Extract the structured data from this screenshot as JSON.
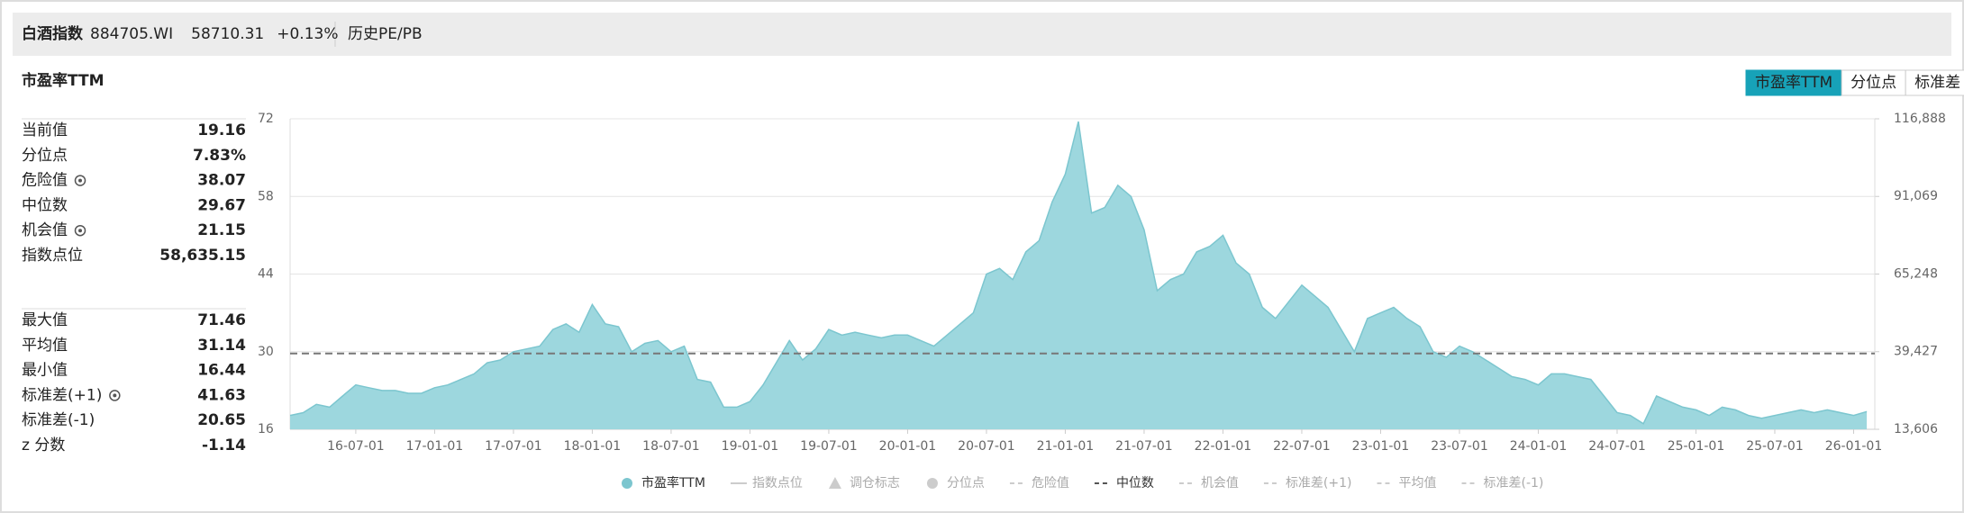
{
  "header": {
    "name": "白酒指数",
    "code": "884705.WI",
    "price": "58710.31",
    "change": "+0.13%",
    "link": "历史PE/PB"
  },
  "section_title": "市盈率TTM",
  "tabs": [
    {
      "label": "市盈率TTM",
      "active": true
    },
    {
      "label": "分位点",
      "active": false
    },
    {
      "label": "标准差",
      "active": false
    }
  ],
  "stats": [
    [
      {
        "label": "当前值",
        "value": "19.16"
      },
      {
        "label": "分位点",
        "value": "7.83%"
      },
      {
        "label": "危险值",
        "value": "38.07",
        "icon": true
      },
      {
        "label": "中位数",
        "value": "29.67"
      },
      {
        "label": "机会值",
        "value": "21.15",
        "icon": true
      },
      {
        "label": "指数点位",
        "value": "58,635.15"
      }
    ],
    [
      {
        "label": "最大值",
        "value": "71.46"
      },
      {
        "label": "平均值",
        "value": "31.14"
      },
      {
        "label": "最小值",
        "value": "16.44"
      },
      {
        "label": "标准差(+1)",
        "value": "41.63",
        "icon": true
      },
      {
        "label": "标准差(-1)",
        "value": "20.65"
      },
      {
        "label": "z 分数",
        "value": "-1.14"
      }
    ]
  ],
  "chart_data": {
    "type": "area",
    "color": "#9dd7de",
    "line_color": "#7cc6cf",
    "ylim": [
      16,
      72
    ],
    "yticks": [
      16,
      30,
      44,
      58,
      72
    ],
    "y2lim": [
      13606,
      116888
    ],
    "y2ticks": [
      {
        "value": 13606,
        "label": "13,606"
      },
      {
        "value": 39427,
        "label": "39,427"
      },
      {
        "value": 65248,
        "label": "65,248"
      },
      {
        "value": 91069,
        "label": "91,069"
      },
      {
        "value": 116888,
        "label": "116,888"
      }
    ],
    "xlim": [
      "16-02-01",
      "26-02-20"
    ],
    "xticks": [
      "16-07-01",
      "17-01-01",
      "17-07-01",
      "18-01-01",
      "18-07-01",
      "19-01-01",
      "19-07-01",
      "20-01-01",
      "20-07-01",
      "21-01-01",
      "21-07-01",
      "22-01-01",
      "22-07-01",
      "23-01-01",
      "23-07-01",
      "24-01-01",
      "24-07-01",
      "25-01-01",
      "25-07-01",
      "26-01-01"
    ],
    "median": 29.67,
    "median_color": "#777",
    "series": [
      {
        "name": "市盈率TTM",
        "x": [
          "16-02-01",
          "16-03-01",
          "16-04-01",
          "16-05-01",
          "16-06-01",
          "16-07-01",
          "16-08-01",
          "16-09-01",
          "16-10-01",
          "16-11-01",
          "16-12-01",
          "17-01-01",
          "17-02-01",
          "17-03-01",
          "17-04-01",
          "17-05-01",
          "17-06-01",
          "17-07-01",
          "17-08-01",
          "17-09-01",
          "17-10-01",
          "17-11-01",
          "17-12-01",
          "18-01-01",
          "18-02-01",
          "18-03-01",
          "18-04-01",
          "18-05-01",
          "18-06-01",
          "18-07-01",
          "18-08-01",
          "18-09-01",
          "18-10-01",
          "18-11-01",
          "18-12-01",
          "19-01-01",
          "19-02-01",
          "19-03-01",
          "19-04-01",
          "19-05-01",
          "19-06-01",
          "19-07-01",
          "19-08-01",
          "19-09-01",
          "19-10-01",
          "19-11-01",
          "19-12-01",
          "20-01-01",
          "20-02-01",
          "20-03-01",
          "20-04-01",
          "20-05-01",
          "20-06-01",
          "20-07-01",
          "20-08-01",
          "20-09-01",
          "20-10-01",
          "20-11-01",
          "20-12-01",
          "21-01-01",
          "21-02-01",
          "21-03-01",
          "21-04-01",
          "21-05-01",
          "21-06-01",
          "21-07-01",
          "21-08-01",
          "21-09-01",
          "21-10-01",
          "21-11-01",
          "21-12-01",
          "22-01-01",
          "22-02-01",
          "22-03-01",
          "22-04-01",
          "22-05-01",
          "22-06-01",
          "22-07-01",
          "22-08-01",
          "22-09-01",
          "22-10-01",
          "22-11-01",
          "22-12-01",
          "23-01-01",
          "23-02-01",
          "23-03-01",
          "23-04-01",
          "23-05-01",
          "23-06-01",
          "23-07-01",
          "23-08-01",
          "23-09-01",
          "23-10-01",
          "23-11-01",
          "23-12-01",
          "24-01-01",
          "24-02-01",
          "24-03-01",
          "24-04-01",
          "24-05-01",
          "24-06-01",
          "24-07-01",
          "24-08-01",
          "24-09-01",
          "24-10-01",
          "24-11-01",
          "24-12-01",
          "25-01-01",
          "25-02-01",
          "25-03-01",
          "25-04-01",
          "25-05-01",
          "25-06-01",
          "25-07-01",
          "25-08-01",
          "25-09-01",
          "25-10-01",
          "25-11-01",
          "25-12-01",
          "26-01-01",
          "26-02-01"
        ],
        "values": [
          18.5,
          19,
          20.5,
          20,
          22,
          24,
          23.5,
          23,
          23,
          22.5,
          22.5,
          23.5,
          24,
          25,
          26,
          28,
          28.5,
          30,
          30.5,
          31,
          34,
          35,
          33.5,
          38.5,
          35,
          34.5,
          30,
          31.5,
          32,
          30,
          31,
          25,
          24.5,
          20,
          20,
          21,
          24,
          28,
          32,
          28.5,
          30.5,
          34,
          33,
          33.5,
          33,
          32.5,
          33,
          33,
          32,
          31,
          33,
          35,
          37,
          44,
          45,
          43,
          48,
          50,
          57,
          62,
          71.5,
          55,
          56,
          60,
          58,
          52,
          41,
          43,
          44,
          48,
          49,
          51,
          46,
          44,
          38,
          36,
          39,
          42,
          40,
          38,
          34,
          30,
          36,
          37,
          38,
          36,
          34.5,
          30,
          29,
          31,
          30,
          28.5,
          27,
          25.5,
          25,
          24,
          26,
          26,
          25.5,
          25,
          22,
          19,
          18.5,
          17,
          22,
          21,
          20,
          19.5,
          18.5,
          20,
          19.5,
          18.5,
          18,
          18.5,
          19,
          19.5,
          19,
          19.5,
          19,
          18.5,
          19.2
        ]
      }
    ],
    "legend": [
      {
        "name": "市盈率TTM",
        "marker": "dot",
        "active": true
      },
      {
        "name": "指数点位",
        "marker": "line",
        "active": false
      },
      {
        "name": "调仓标志",
        "marker": "triangle",
        "active": false
      },
      {
        "name": "分位点",
        "marker": "dot",
        "active": false
      },
      {
        "name": "危险值",
        "marker": "dash",
        "active": false
      },
      {
        "name": "中位数",
        "marker": "dash",
        "active": true
      },
      {
        "name": "机会值",
        "marker": "dash",
        "active": false
      },
      {
        "name": "标准差(+1)",
        "marker": "dash",
        "active": false
      },
      {
        "name": "平均值",
        "marker": "dash",
        "active": false
      },
      {
        "name": "标准差(-1)",
        "marker": "dash",
        "active": false
      }
    ]
  }
}
